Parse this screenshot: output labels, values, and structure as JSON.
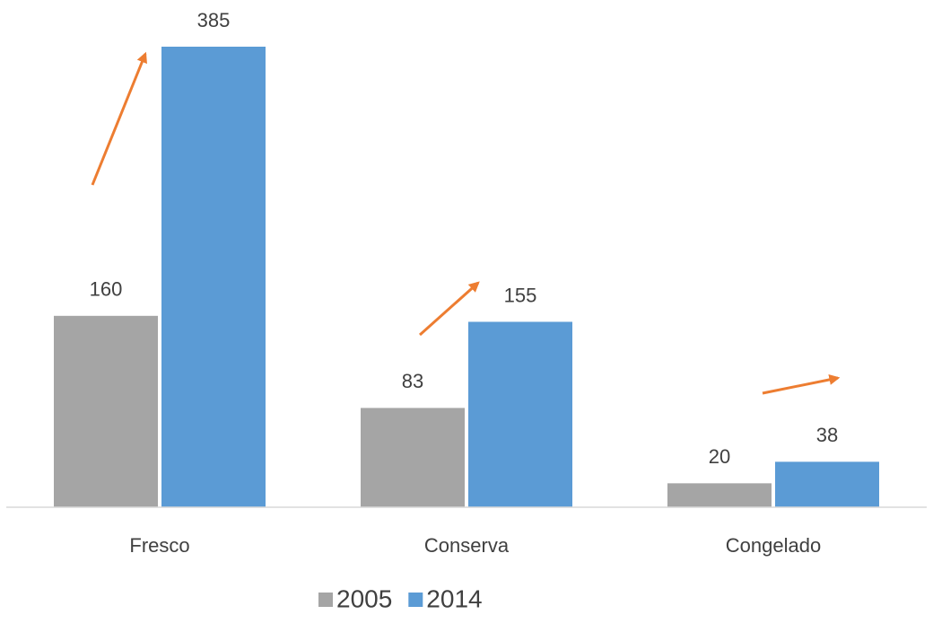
{
  "chart_data": {
    "type": "bar",
    "categories": [
      "Fresco",
      "Conserva",
      "Congelado"
    ],
    "series": [
      {
        "name": "2005",
        "color": "#a5a5a5",
        "values": [
          160,
          83,
          20
        ]
      },
      {
        "name": "2014",
        "color": "#5b9bd5",
        "values": [
          385,
          155,
          38
        ]
      }
    ]
  }
}
